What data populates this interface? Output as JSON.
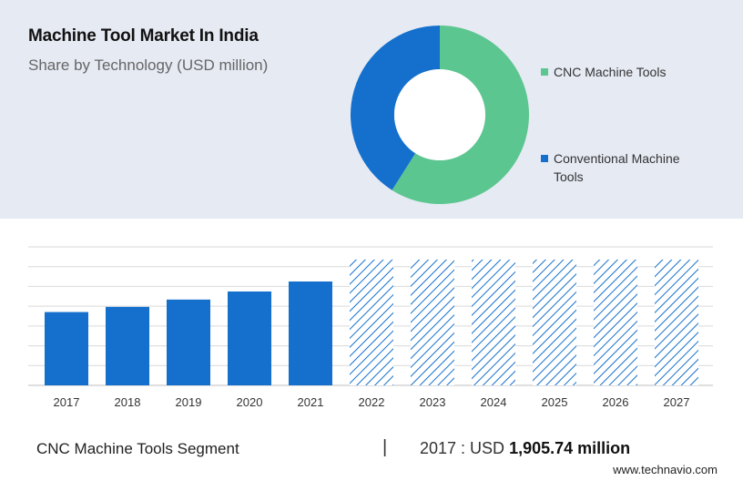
{
  "header": {
    "title": "Machine Tool Market In India",
    "subtitle": "Share by Technology (USD million)"
  },
  "chart_data": [
    {
      "type": "pie",
      "variant": "donut",
      "title": "Machine Tool Market In India",
      "subtitle": "Share by Technology (USD million)",
      "labels": [
        "CNC Machine Tools",
        "Conventional Machine Tools"
      ],
      "legend_lines": [
        [
          "CNC Machine Tools"
        ],
        [
          "Conventional Machine",
          "Tools"
        ]
      ],
      "values": [
        59,
        41
      ],
      "colors": [
        "#5cc690",
        "#1470cc"
      ],
      "legend_position": "right"
    },
    {
      "type": "bar",
      "categories": [
        "2017",
        "2018",
        "2019",
        "2020",
        "2021",
        "2022",
        "2023",
        "2024",
        "2025",
        "2026",
        "2027"
      ],
      "values": [
        1905.74,
        2040,
        2230,
        2440,
        2700,
        3270,
        3270,
        3270,
        3270,
        3270,
        3270
      ],
      "forecast_from": "2022",
      "forecast_style": "hatched",
      "ylim": [
        0,
        3600
      ],
      "grid": true,
      "color": "#1470cc",
      "xlabel": "",
      "ylabel": ""
    }
  ],
  "footer": {
    "segment": "CNC Machine Tools Segment",
    "divider": "|",
    "year_prefix": "2017 : USD",
    "value": "1,905.74 million",
    "source": "www.technavio.com"
  }
}
